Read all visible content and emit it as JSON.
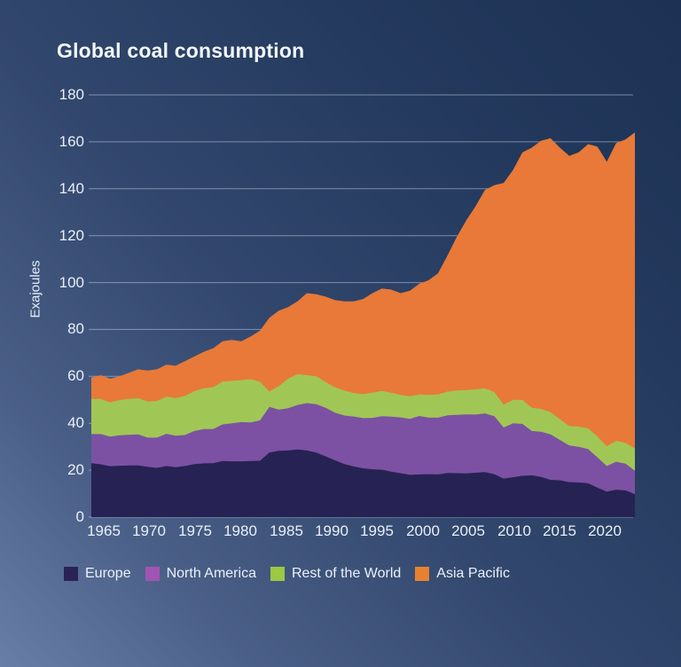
{
  "title": "Global coal consumption",
  "y_axis": {
    "title": "Exajoules",
    "ticks": [
      0,
      20,
      40,
      60,
      80,
      100,
      120,
      140,
      160,
      180
    ],
    "max": 180
  },
  "x_axis": {
    "ticks": [
      1965,
      1970,
      1975,
      1980,
      1985,
      1990,
      1995,
      2000,
      2005,
      2010,
      2015,
      2020
    ]
  },
  "legend": [
    {
      "label": "Europe",
      "swatch_color": "#2a2456"
    },
    {
      "label": "North America",
      "swatch_color": "#a055b2"
    },
    {
      "label": "Rest of the World",
      "swatch_color": "#9cc843"
    },
    {
      "label": "Asia Pacific",
      "swatch_color": "#e8812f"
    }
  ],
  "colors": {
    "background_light": "#687ea6",
    "background_dark": "#1c3153",
    "gridline": "rgba(205,220,238,0.5)",
    "text": "#e8eff7"
  },
  "chart_data": {
    "type": "area",
    "stacked": true,
    "title": "Global coal consumption",
    "ylabel": "Exajoules",
    "ylim": [
      0,
      180
    ],
    "grid": "horizontal",
    "legend_position": "bottom",
    "x": [
      1965,
      1966,
      1967,
      1968,
      1969,
      1970,
      1971,
      1972,
      1973,
      1974,
      1975,
      1976,
      1977,
      1978,
      1979,
      1980,
      1981,
      1982,
      1983,
      1984,
      1985,
      1986,
      1987,
      1988,
      1989,
      1990,
      1991,
      1992,
      1993,
      1994,
      1995,
      1996,
      1997,
      1998,
      1999,
      2000,
      2001,
      2002,
      2003,
      2004,
      2005,
      2006,
      2007,
      2008,
      2009,
      2010,
      2011,
      2012,
      2013,
      2014,
      2015,
      2016,
      2017,
      2018,
      2019,
      2020,
      2021,
      2022,
      2023
    ],
    "series": [
      {
        "name": "Europe",
        "color": "#262253",
        "values": [
          23.0,
          22.5,
          21.7,
          21.9,
          22.0,
          22.0,
          21.4,
          21.0,
          21.8,
          21.3,
          21.8,
          22.6,
          22.9,
          23.0,
          23.9,
          23.8,
          23.8,
          23.9,
          24.0,
          27.5,
          28.3,
          28.4,
          28.8,
          28.4,
          27.5,
          25.9,
          24.2,
          22.6,
          21.6,
          20.8,
          20.4,
          20.2,
          19.4,
          18.7,
          18.0,
          18.2,
          18.3,
          18.2,
          18.8,
          18.7,
          18.6,
          18.9,
          19.2,
          18.3,
          16.4,
          17.0,
          17.6,
          17.8,
          17.1,
          15.9,
          15.7,
          14.9,
          14.8,
          14.4,
          12.6,
          10.9,
          11.7,
          11.4,
          9.8
        ]
      },
      {
        "name": "North America",
        "color": "#7c51a3",
        "values": [
          12.4,
          12.9,
          12.6,
          13.0,
          13.1,
          13.3,
          12.5,
          12.9,
          13.7,
          13.4,
          13.2,
          14.1,
          14.6,
          14.5,
          15.6,
          16.2,
          16.7,
          16.5,
          17.2,
          19.5,
          17.5,
          18.0,
          19.0,
          20.2,
          20.6,
          20.7,
          20.3,
          20.7,
          21.3,
          21.4,
          21.9,
          22.8,
          23.4,
          23.8,
          23.9,
          24.9,
          24.1,
          24.2,
          24.6,
          24.9,
          25.2,
          24.8,
          25.0,
          24.7,
          21.8,
          23.0,
          22.1,
          18.9,
          19.3,
          19.4,
          17.2,
          15.6,
          15.2,
          14.6,
          12.9,
          10.9,
          11.9,
          11.4,
          10.0
        ]
      },
      {
        "name": "Rest of the World",
        "color": "#a0c755",
        "values": [
          15.0,
          15.0,
          14.6,
          15.0,
          15.3,
          15.4,
          15.4,
          15.6,
          15.8,
          16.0,
          16.7,
          17.0,
          17.4,
          17.9,
          18.3,
          18.1,
          17.9,
          18.4,
          16.5,
          6.5,
          10.0,
          12.6,
          13.2,
          11.9,
          11.9,
          11.0,
          10.8,
          10.7,
          10.0,
          10.2,
          10.7,
          10.8,
          10.2,
          9.6,
          9.6,
          9.2,
          9.7,
          9.9,
          10.1,
          10.4,
          10.4,
          10.7,
          10.7,
          10.3,
          9.7,
          10.0,
          10.2,
          9.9,
          9.7,
          9.4,
          8.9,
          8.3,
          8.6,
          8.8,
          8.9,
          8.4,
          8.9,
          8.9,
          9.4
        ]
      },
      {
        "name": "Asia Pacific",
        "color": "#e87938",
        "values": [
          9.1,
          10.1,
          10.1,
          10.1,
          11.1,
          12.3,
          13.2,
          13.5,
          13.7,
          13.8,
          14.8,
          14.8,
          15.6,
          16.6,
          17.2,
          17.4,
          16.6,
          18.2,
          21.8,
          31.5,
          32.2,
          30.5,
          31.0,
          35.0,
          35.0,
          36.4,
          37.2,
          38.0,
          39.1,
          40.6,
          42.5,
          43.7,
          44.0,
          43.4,
          45.0,
          47.2,
          48.9,
          51.7,
          58.0,
          65.5,
          72.3,
          78.1,
          84.6,
          88.2,
          94.6,
          98.0,
          105.6,
          110.9,
          114.4,
          116.8,
          115.7,
          115.2,
          116.9,
          121.2,
          123.6,
          121.3,
          127.0,
          129.3,
          134.8
        ]
      }
    ]
  }
}
